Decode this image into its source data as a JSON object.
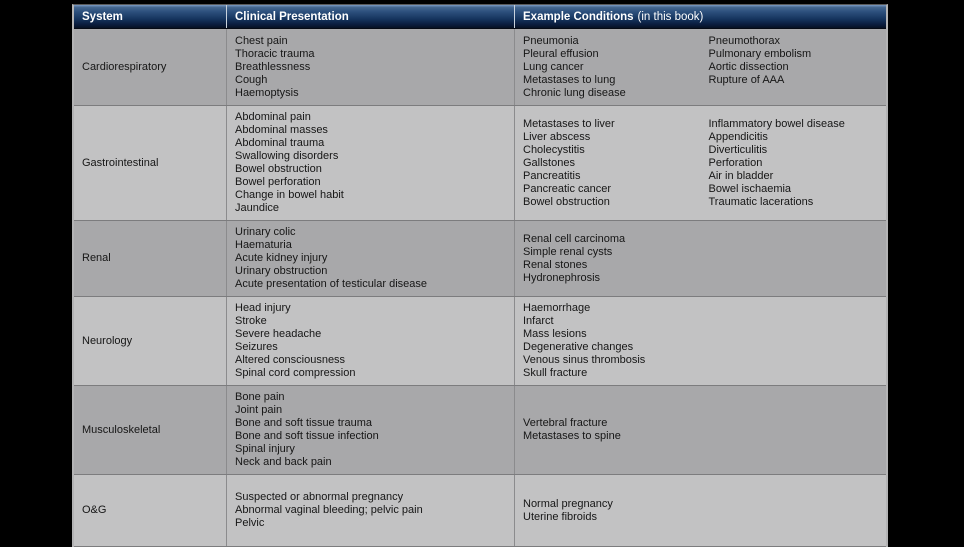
{
  "table": {
    "headers": {
      "system": "System",
      "clinical": "Clinical Presentation",
      "example_bold": "Example Conditions",
      "example_paren": "(in this book)"
    },
    "rows": [
      {
        "system": "Cardiorespiratory",
        "presentations": [
          "Chest pain",
          "Thoracic trauma",
          "Breathlessness",
          "Cough",
          "Haemoptysis"
        ],
        "conditions_col1": [
          "Pneumonia",
          "Pleural effusion",
          "Lung cancer",
          "Metastases to lung",
          "Chronic lung disease"
        ],
        "conditions_col2": [
          "Pneumothorax",
          "Pulmonary embolism",
          "Aortic dissection",
          "Rupture of AAA"
        ]
      },
      {
        "system": "Gastrointestinal",
        "presentations": [
          "Abdominal pain",
          "Abdominal masses",
          "Abdominal trauma",
          "Swallowing disorders",
          "Bowel obstruction",
          "Bowel perforation",
          "Change in bowel habit",
          "Jaundice"
        ],
        "conditions_col1": [
          "Metastases to liver",
          "Liver abscess",
          "Cholecystitis",
          "Gallstones",
          "Pancreatitis",
          "Pancreatic cancer",
          "Bowel obstruction"
        ],
        "conditions_col2": [
          "Inflammatory bowel disease",
          "Appendicitis",
          "Diverticulitis",
          "Perforation",
          "Air in bladder",
          "Bowel ischaemia",
          "Traumatic lacerations"
        ]
      },
      {
        "system": "Renal",
        "presentations": [
          "Urinary colic",
          "Haematuria",
          "Acute kidney injury",
          "Urinary obstruction",
          "Acute presentation of testicular disease"
        ],
        "conditions_col1": [
          "Renal cell carcinoma",
          "Simple renal cysts",
          "Renal stones",
          "Hydronephrosis"
        ],
        "conditions_col2": []
      },
      {
        "system": "Neurology",
        "presentations": [
          "Head injury",
          "Stroke",
          "Severe headache",
          "Seizures",
          "Altered consciousness",
          "Spinal cord compression"
        ],
        "conditions_col1": [
          "Haemorrhage",
          "Infarct",
          "Mass lesions",
          "Degenerative changes",
          "Venous sinus thrombosis",
          "Skull fracture"
        ],
        "conditions_col2": []
      },
      {
        "system": "Musculoskeletal",
        "presentations": [
          "Bone pain",
          "Joint pain",
          "Bone and soft tissue trauma",
          "Bone and soft tissue infection",
          "Spinal injury",
          "Neck and back pain"
        ],
        "conditions_col1": [
          "Vertebral fracture",
          "Metastases to spine"
        ],
        "conditions_col2": []
      },
      {
        "system": "O&G",
        "presentations": [
          "Suspected or abnormal pregnancy",
          "Abnormal vaginal bleeding; pelvic pain",
          "Pelvic"
        ],
        "conditions_col1": [
          "Normal pregnancy",
          "Uterine fibroids"
        ],
        "conditions_col2": []
      }
    ]
  },
  "colors": {
    "header_gradient_top": "#7d9cc4",
    "header_gradient_bottom": "#061023",
    "row_dark": "#a8a8aa",
    "row_light": "#c2c2c3",
    "page_background": "#000000",
    "header_text": "#ffffff",
    "body_text": "#161616"
  }
}
